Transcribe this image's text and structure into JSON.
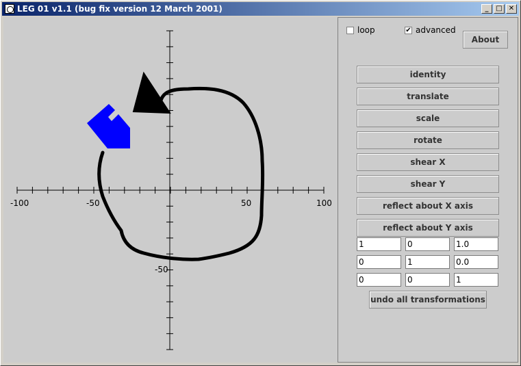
{
  "window": {
    "title": "LEG 01 v1.1 (bug fix version 12 March 2001)",
    "controls": [
      "minimize",
      "maximize",
      "close"
    ]
  },
  "axes": {
    "x_ticks": [
      "-100",
      "-50",
      "50",
      "100"
    ],
    "y_ticks": [
      "-50"
    ]
  },
  "panel": {
    "loop_label": "loop",
    "loop_checked": false,
    "advanced_label": "advanced",
    "advanced_checked": true,
    "about_label": "About",
    "buttons": [
      "identity",
      "translate",
      "scale",
      "rotate",
      "shear X",
      "shear Y",
      "reflect about X axis",
      "reflect about Y axis"
    ],
    "matrix": [
      [
        "1",
        "0",
        "1.0"
      ],
      [
        "0",
        "1",
        "0.0"
      ],
      [
        "0",
        "0",
        "1"
      ]
    ],
    "undo_label": "undo all transformations"
  },
  "colors": {
    "shape": "#0000ff",
    "stroke": "#000000"
  }
}
